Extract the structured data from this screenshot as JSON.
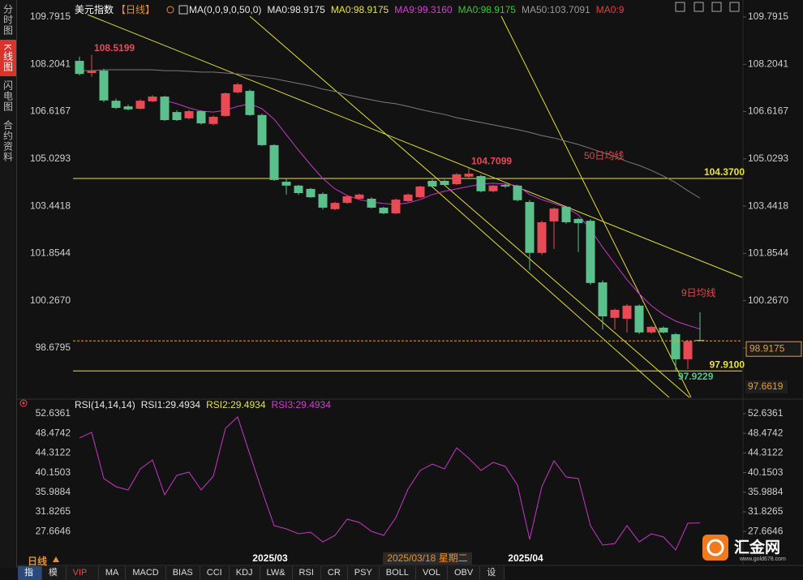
{
  "sidebar": {
    "tabs": [
      "分时图",
      "K线图",
      "闪电图",
      "合约资料"
    ]
  },
  "toolbar": {
    "period": "日线",
    "items": [
      "指标",
      "模板",
      "VIP指标",
      "MA",
      "MACD",
      "BIAS",
      "CCI",
      "KDJ",
      "LW&",
      "RSI",
      "CR",
      "PSY",
      "BOLL",
      "VOL",
      "OBV",
      "设置"
    ]
  },
  "logo": {
    "name": "汇金网",
    "url": "www.gold678.com"
  },
  "chart_data": [
    {
      "type": "candlestick",
      "title": "美元指数",
      "period": "【日线】",
      "legend": [
        {
          "text": "MA(0,0,9,0,50,0)",
          "color": "#e6e6e6"
        },
        {
          "text": "MA0:98.9175",
          "color": "#e6e6e6"
        },
        {
          "text": "MA0:98.9175",
          "color": "#e8e23a"
        },
        {
          "text": "MA9:99.3160",
          "color": "#d040d0"
        },
        {
          "text": "MA0:98.9175",
          "color": "#3cc43c"
        },
        {
          "text": "MA50:103.7091",
          "color": "#9a9a9a"
        },
        {
          "text": "MA0:9",
          "color": "#e83c3c"
        }
      ],
      "up_color": "#e84a56",
      "down_color": "#5cc08c",
      "candles": [
        {
          "open": 108.32,
          "high": 108.46,
          "low": 107.83,
          "close": 107.88
        },
        {
          "open": 107.91,
          "high": 108.5199,
          "low": 107.78,
          "close": 107.99
        },
        {
          "open": 107.99,
          "high": 108.05,
          "low": 106.93,
          "close": 106.99
        },
        {
          "open": 106.98,
          "high": 107.05,
          "low": 106.7,
          "close": 106.74
        },
        {
          "open": 106.79,
          "high": 106.85,
          "low": 106.66,
          "close": 106.69
        },
        {
          "open": 106.71,
          "high": 107.03,
          "low": 106.68,
          "close": 106.98
        },
        {
          "open": 106.96,
          "high": 107.17,
          "low": 106.93,
          "close": 107.12
        },
        {
          "open": 107.12,
          "high": 107.15,
          "low": 106.3,
          "close": 106.33
        },
        {
          "open": 106.6,
          "high": 106.66,
          "low": 106.3,
          "close": 106.33
        },
        {
          "open": 106.39,
          "high": 106.67,
          "low": 106.35,
          "close": 106.63
        },
        {
          "open": 106.63,
          "high": 106.66,
          "low": 106.18,
          "close": 106.22
        },
        {
          "open": 106.2,
          "high": 106.48,
          "low": 106.15,
          "close": 106.44
        },
        {
          "open": 106.47,
          "high": 107.26,
          "low": 106.44,
          "close": 107.23
        },
        {
          "open": 107.26,
          "high": 107.58,
          "low": 107.22,
          "close": 107.53
        },
        {
          "open": 107.31,
          "high": 107.36,
          "low": 106.47,
          "close": 106.5
        },
        {
          "open": 106.5,
          "high": 106.55,
          "low": 105.46,
          "close": 105.49
        },
        {
          "open": 105.49,
          "high": 105.52,
          "low": 104.29,
          "close": 104.32
        },
        {
          "open": 104.26,
          "high": 104.37,
          "low": 103.83,
          "close": 104.13
        },
        {
          "open": 104.13,
          "high": 104.16,
          "low": 103.82,
          "close": 103.88
        },
        {
          "open": 104.02,
          "high": 104.05,
          "low": 103.72,
          "close": 103.74
        },
        {
          "open": 103.85,
          "high": 103.9,
          "low": 103.33,
          "close": 103.39
        },
        {
          "open": 103.34,
          "high": 103.59,
          "low": 103.3,
          "close": 103.55
        },
        {
          "open": 103.55,
          "high": 103.8,
          "low": 103.52,
          "close": 103.77
        },
        {
          "open": 103.69,
          "high": 103.86,
          "low": 103.66,
          "close": 103.83
        },
        {
          "open": 103.69,
          "high": 103.74,
          "low": 103.36,
          "close": 103.39
        },
        {
          "open": 103.39,
          "high": 103.42,
          "low": 103.17,
          "close": 103.2
        },
        {
          "open": 103.2,
          "high": 103.7,
          "low": 103.17,
          "close": 103.66
        },
        {
          "open": 103.61,
          "high": 103.87,
          "low": 103.58,
          "close": 103.83
        },
        {
          "open": 103.74,
          "high": 104.12,
          "low": 103.71,
          "close": 104.1
        },
        {
          "open": 104.29,
          "high": 104.34,
          "low": 104.05,
          "close": 104.1
        },
        {
          "open": 104.29,
          "high": 104.33,
          "low": 104.13,
          "close": 104.15
        },
        {
          "open": 104.18,
          "high": 104.55,
          "low": 104.15,
          "close": 104.51
        },
        {
          "open": 104.43,
          "high": 104.7099,
          "low": 104.4,
          "close": 104.53
        },
        {
          "open": 104.45,
          "high": 104.5,
          "low": 103.9,
          "close": 103.94
        },
        {
          "open": 103.94,
          "high": 104.15,
          "low": 103.9,
          "close": 104.13
        },
        {
          "open": 104.15,
          "high": 104.2,
          "low": 104.05,
          "close": 104.1
        },
        {
          "open": 104.13,
          "high": 104.16,
          "low": 103.6,
          "close": 103.64
        },
        {
          "open": 103.58,
          "high": 103.65,
          "low": 101.29,
          "close": 101.87
        },
        {
          "open": 101.87,
          "high": 102.95,
          "low": 101.8,
          "close": 102.9
        },
        {
          "open": 102.93,
          "high": 103.4,
          "low": 102.0,
          "close": 103.36
        },
        {
          "open": 103.42,
          "high": 103.45,
          "low": 102.85,
          "close": 102.9
        },
        {
          "open": 103.01,
          "high": 103.05,
          "low": 101.9,
          "close": 102.87
        },
        {
          "open": 102.95,
          "high": 103.0,
          "low": 100.8,
          "close": 100.86
        },
        {
          "open": 100.88,
          "high": 100.95,
          "low": 99.3,
          "close": 99.74
        },
        {
          "open": 99.69,
          "high": 100.0,
          "low": 99.3,
          "close": 99.96
        },
        {
          "open": 99.66,
          "high": 100.15,
          "low": 99.2,
          "close": 100.1
        },
        {
          "open": 100.1,
          "high": 100.14,
          "low": 99.15,
          "close": 99.2
        },
        {
          "open": 99.2,
          "high": 99.42,
          "low": 99.15,
          "close": 99.39
        },
        {
          "open": 99.36,
          "high": 99.4,
          "low": 99.17,
          "close": 99.2
        },
        {
          "open": 99.14,
          "high": 99.18,
          "low": 97.9229,
          "close": 98.3
        },
        {
          "open": 98.3,
          "high": 98.95,
          "low": 97.97,
          "close": 98.9
        },
        {
          "open": 98.95,
          "high": 99.88,
          "low": 98.9,
          "close": 98.9175
        }
      ],
      "series": [
        {
          "color": "#c637c6",
          "values": [
            null,
            null,
            null,
            null,
            null,
            null,
            null,
            106.99,
            106.88,
            106.74,
            106.63,
            106.6,
            106.66,
            106.79,
            106.88,
            106.71,
            106.36,
            105.84,
            105.32,
            104.83,
            104.37,
            104.02,
            103.8,
            103.66,
            103.58,
            103.53,
            103.5,
            103.55,
            103.66,
            103.83,
            103.94,
            104.02,
            104.1,
            104.18,
            104.21,
            104.18,
            104.13,
            103.83,
            103.66,
            103.53,
            103.39,
            103.15,
            102.66,
            102.06,
            101.51,
            100.97,
            100.5,
            100.1,
            99.8,
            99.58,
            99.44,
            99.316
          ]
        },
        {
          "color": "#7a7a7a",
          "values": [
            107.99,
            107.99,
            108.02,
            108.02,
            108.02,
            108.02,
            108.02,
            107.99,
            107.99,
            107.97,
            107.94,
            107.94,
            107.91,
            107.88,
            107.83,
            107.78,
            107.72,
            107.64,
            107.56,
            107.48,
            107.37,
            107.29,
            107.18,
            107.09,
            107.01,
            106.93,
            106.88,
            106.79,
            106.69,
            106.6,
            106.52,
            106.41,
            106.33,
            106.25,
            106.17,
            106.09,
            106.01,
            105.92,
            105.81,
            105.73,
            105.62,
            105.51,
            105.38,
            105.24,
            105.11,
            104.94,
            104.81,
            104.64,
            104.45,
            104.23,
            103.96,
            103.71
          ]
        }
      ],
      "ylim": [
        97,
        110
      ],
      "yticks": [
        109.7915,
        108.2041,
        106.6167,
        105.0293,
        103.4418,
        101.8544,
        {
          "value": 100.267,
          "label": "100.2670"
        },
        98.6795
      ],
      "grid": false,
      "hlines": [
        {
          "value": 104.37,
          "label": "104.3700",
          "color": "#e8e23a"
        },
        {
          "value": 97.91,
          "label": "97.9100",
          "color": "#e8e23a"
        }
      ],
      "last_price": 98.9175,
      "last_price_color": "#e0a03c",
      "axis_low": 97.6619,
      "annotations": [
        "50日均线",
        "9日均线"
      ],
      "x_labels": [
        "2025/03",
        "2025/04"
      ],
      "crosshair_label": "2025/03/18 星期二"
    },
    {
      "type": "line",
      "title": "RSI(14,14,14)",
      "legend": [
        {
          "text": "RSI1:29.4934",
          "color": "#e6e6e6"
        },
        {
          "text": "RSI2:29.4934",
          "color": "#e8e23a"
        },
        {
          "text": "RSI3:29.4934",
          "color": "#d040d0"
        }
      ],
      "series": [
        {
          "color": "#c637c6",
          "values": [
            47.48,
            48.68,
            38.88,
            37.16,
            36.47,
            40.94,
            42.83,
            35.44,
            39.57,
            40.25,
            36.47,
            39.39,
            49.54,
            51.95,
            44.04,
            36.3,
            28.9,
            28.22,
            27.18,
            27.53,
            25.46,
            26.84,
            30.28,
            29.59,
            27.7,
            26.84,
            30.62,
            36.64,
            40.6,
            41.97,
            40.94,
            45.41,
            43.18,
            40.6,
            42.32,
            41.46,
            37.5,
            25.98,
            37.16,
            42.66,
            39.22,
            38.88,
            28.9,
            24.78,
            25.12,
            28.9,
            25.46,
            27.18,
            26.5,
            23.74,
            29.42,
            29.4934
          ]
        }
      ],
      "ylim": [
        21.7,
        54.4
      ],
      "yticks": [
        52.6361,
        48.4742,
        44.3122,
        40.1503,
        35.9884,
        31.8265,
        27.6646
      ],
      "grid": false
    }
  ]
}
